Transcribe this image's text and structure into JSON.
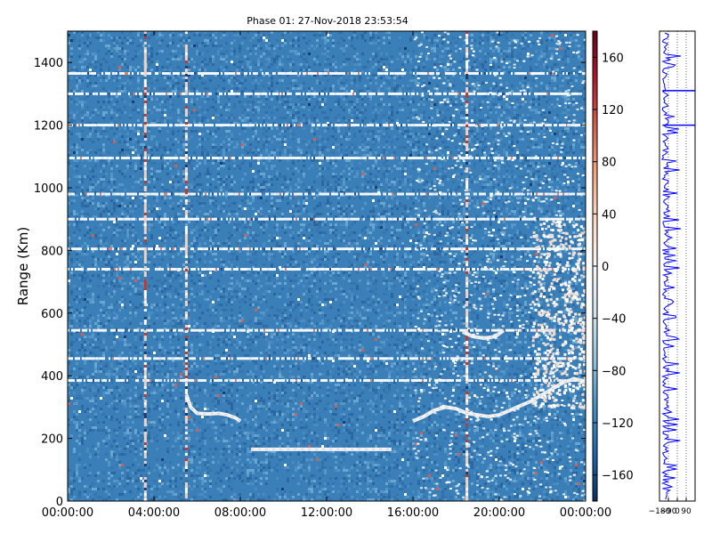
{
  "chart_data": [
    {
      "type": "heatmap",
      "title": "Phase 01: 27-Nov-2018 23:53:54",
      "xlabel": "",
      "ylabel": "Range (Km)",
      "x_ticks": [
        "00:00:00",
        "04:00:00",
        "08:00:00",
        "12:00:00",
        "16:00:00",
        "20:00:00",
        "00:00:00"
      ],
      "x_range_hours": [
        0,
        24
      ],
      "y_ticks": [
        0,
        200,
        400,
        600,
        800,
        1000,
        1200,
        1400
      ],
      "ylim": [
        0,
        1500
      ],
      "colormap": "RdBu_r",
      "base_color": "#3a7fb8",
      "colorbar": {
        "vmin": -180,
        "vmax": 180,
        "ticks": [
          -160,
          -120,
          -80,
          -40,
          0,
          40,
          80,
          120,
          160
        ]
      },
      "grid": false,
      "features": {
        "bright_range_bands_km": [
          1365,
          1300,
          1200,
          1095,
          980,
          900,
          805,
          740,
          545,
          455,
          385
        ],
        "vertical_artifact_hours": [
          3.6,
          5.5,
          18.5
        ],
        "bright_traces": [
          {
            "name": "",
            "x_hours": [
              5.5,
              5.7,
              6.0,
              6.5,
              7.0,
              7.4,
              7.8,
              8.0
            ],
            "y_km": [
              340,
              300,
              280,
              278,
              280,
              275,
              265,
              255
            ]
          },
          {
            "name": "",
            "x_hours": [
              8.5,
              9.5,
              10.5,
              11.5,
              12.5,
              13.5,
              14.5,
              15.0
            ],
            "y_km": [
              165,
              165,
              165,
              165,
              165,
              165,
              165,
              165
            ]
          },
          {
            "name": "",
            "x_hours": [
              16.0,
              16.5,
              17.0,
              17.5,
              18.0,
              18.5,
              19.0,
              19.5,
              20.0,
              20.5,
              21.0,
              21.5,
              22.0,
              22.5,
              23.0,
              23.5,
              24.0
            ],
            "y_km": [
              255,
              270,
              290,
              300,
              295,
              280,
              275,
              270,
              275,
              290,
              305,
              320,
              340,
              360,
              380,
              390,
              380
            ]
          },
          {
            "name": "",
            "x_hours": [
              18.3,
              18.8,
              19.3,
              19.8,
              20.2
            ],
            "y_km": [
              540,
              525,
              520,
              525,
              545
            ]
          }
        ]
      }
    },
    {
      "type": "line",
      "title": "",
      "xlabel": "",
      "ylabel": "",
      "x_tick_labels": [
        "-180",
        "-90",
        "0",
        "90"
      ],
      "x_tick_values": [
        -180,
        -90,
        0,
        90
      ],
      "xlim": [
        -180,
        180
      ],
      "ylim": [
        0,
        1500
      ],
      "line_color": "#0000ff",
      "grid": true,
      "series": [
        {
          "name": "",
          "profile_note": "",
          "x": [],
          "y": []
        }
      ]
    }
  ]
}
